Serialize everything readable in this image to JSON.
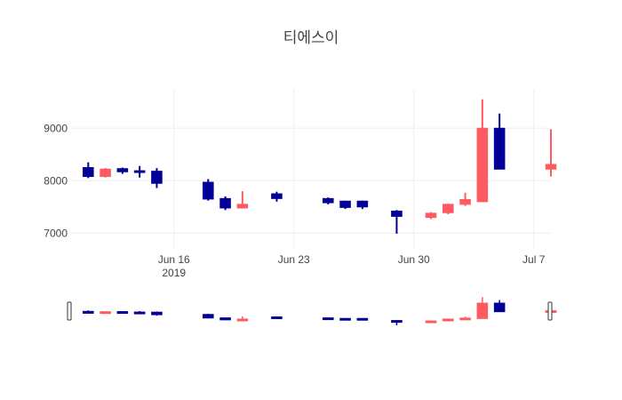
{
  "chart_data": {
    "type": "candlestick",
    "title": "티에스이",
    "xlabel": "",
    "ylabel": "",
    "ylim": [
      6700,
      9750
    ],
    "x_range": [
      "2019-06-10",
      "2019-07-08"
    ],
    "yticks": [
      7000,
      8000,
      9000
    ],
    "xticks": [
      {
        "date": "2019-06-16",
        "label": "Jun 16",
        "sub": "2019"
      },
      {
        "date": "2019-06-23",
        "label": "Jun 23",
        "sub": ""
      },
      {
        "date": "2019-06-30",
        "label": "Jun 30",
        "sub": ""
      },
      {
        "date": "2019-07-07",
        "label": "Jul 7",
        "sub": ""
      }
    ],
    "grid": true,
    "increasing_color": "#ff5a5f",
    "decreasing_color": "#000099",
    "rangeslider": true,
    "data": [
      {
        "date": "2019-06-11",
        "open": 8250,
        "high": 8350,
        "low": 8050,
        "close": 8080
      },
      {
        "date": "2019-06-12",
        "open": 8080,
        "high": 8240,
        "low": 8060,
        "close": 8220
      },
      {
        "date": "2019-06-13",
        "open": 8230,
        "high": 8250,
        "low": 8130,
        "close": 8170
      },
      {
        "date": "2019-06-14",
        "open": 8190,
        "high": 8280,
        "low": 8060,
        "close": 8160
      },
      {
        "date": "2019-06-15",
        "open": 8180,
        "high": 8240,
        "low": 7860,
        "close": 7950
      },
      {
        "date": "2019-06-18",
        "open": 7970,
        "high": 8030,
        "low": 7620,
        "close": 7650
      },
      {
        "date": "2019-06-19",
        "open": 7660,
        "high": 7700,
        "low": 7440,
        "close": 7480
      },
      {
        "date": "2019-06-20",
        "open": 7480,
        "high": 7800,
        "low": 7470,
        "close": 7550
      },
      {
        "date": "2019-06-22",
        "open": 7750,
        "high": 7790,
        "low": 7600,
        "close": 7660
      },
      {
        "date": "2019-06-25",
        "open": 7660,
        "high": 7680,
        "low": 7550,
        "close": 7580
      },
      {
        "date": "2019-06-26",
        "open": 7610,
        "high": 7620,
        "low": 7460,
        "close": 7490
      },
      {
        "date": "2019-06-27",
        "open": 7610,
        "high": 7620,
        "low": 7460,
        "close": 7500
      },
      {
        "date": "2019-06-29",
        "open": 7420,
        "high": 7440,
        "low": 6990,
        "close": 7320
      },
      {
        "date": "2019-07-01",
        "open": 7300,
        "high": 7400,
        "low": 7270,
        "close": 7380
      },
      {
        "date": "2019-07-02",
        "open": 7390,
        "high": 7560,
        "low": 7360,
        "close": 7550
      },
      {
        "date": "2019-07-03",
        "open": 7550,
        "high": 7770,
        "low": 7520,
        "close": 7640
      },
      {
        "date": "2019-07-04",
        "open": 7600,
        "high": 9550,
        "low": 7600,
        "close": 9000
      },
      {
        "date": "2019-07-05",
        "open": 9000,
        "high": 9280,
        "low": 8220,
        "close": 8220
      },
      {
        "date": "2019-07-08",
        "open": 8220,
        "high": 8980,
        "low": 8080,
        "close": 8310
      }
    ]
  }
}
